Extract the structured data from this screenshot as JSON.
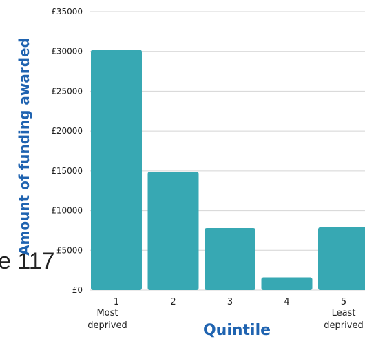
{
  "chart_data": {
    "type": "bar",
    "categories": [
      {
        "number": "1",
        "sub": [
          "Most",
          "deprived"
        ]
      },
      {
        "number": "2",
        "sub": []
      },
      {
        "number": "3",
        "sub": []
      },
      {
        "number": "4",
        "sub": []
      },
      {
        "number": "5",
        "sub": [
          "Least",
          "deprived"
        ]
      }
    ],
    "values": [
      30200,
      14900,
      7800,
      1600,
      7900
    ],
    "xlabel": "Quintile",
    "ylabel": "Amount of funding awarded",
    "ylim": [
      0,
      35000
    ],
    "yticks": [
      0,
      5000,
      10000,
      15000,
      20000,
      25000,
      30000,
      35000
    ],
    "ytick_labels": [
      "£0",
      "£5000",
      "£10000",
      "£15000",
      "£20000",
      "£25000",
      "£30000",
      "£35000"
    ],
    "grid": true,
    "bar_color": "#37a8b3",
    "label_color": "#1f63b0",
    "stray_text": "e 117"
  }
}
